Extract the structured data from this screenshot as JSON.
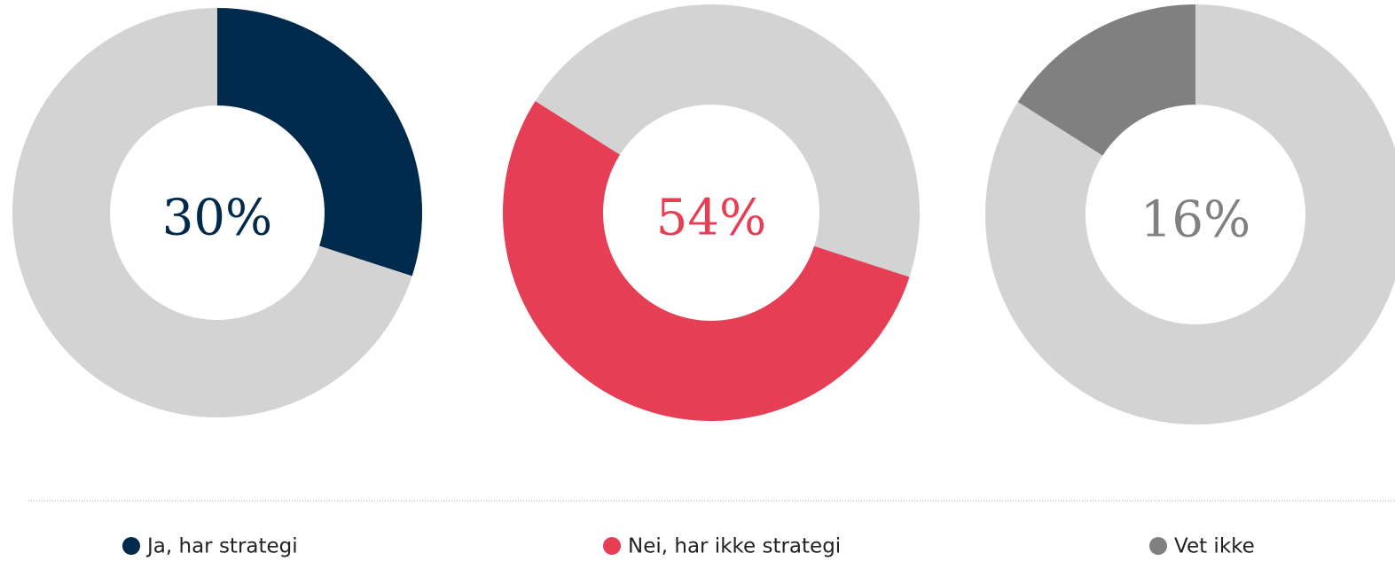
{
  "chart_data": [
    {
      "type": "donut",
      "categories": [
        "Ja, har strategi"
      ],
      "values": [
        30
      ],
      "value_labels": [
        "30%"
      ],
      "color": "#002a4b"
    },
    {
      "type": "donut",
      "categories": [
        "Nei, har ikke strategi"
      ],
      "values": [
        54
      ],
      "value_labels": [
        "54%"
      ],
      "color": "#e63e55"
    },
    {
      "type": "donut",
      "categories": [
        "Vet ikke"
      ],
      "values": [
        16
      ],
      "value_labels": [
        "16%"
      ],
      "color": "#808080"
    }
  ]
}
